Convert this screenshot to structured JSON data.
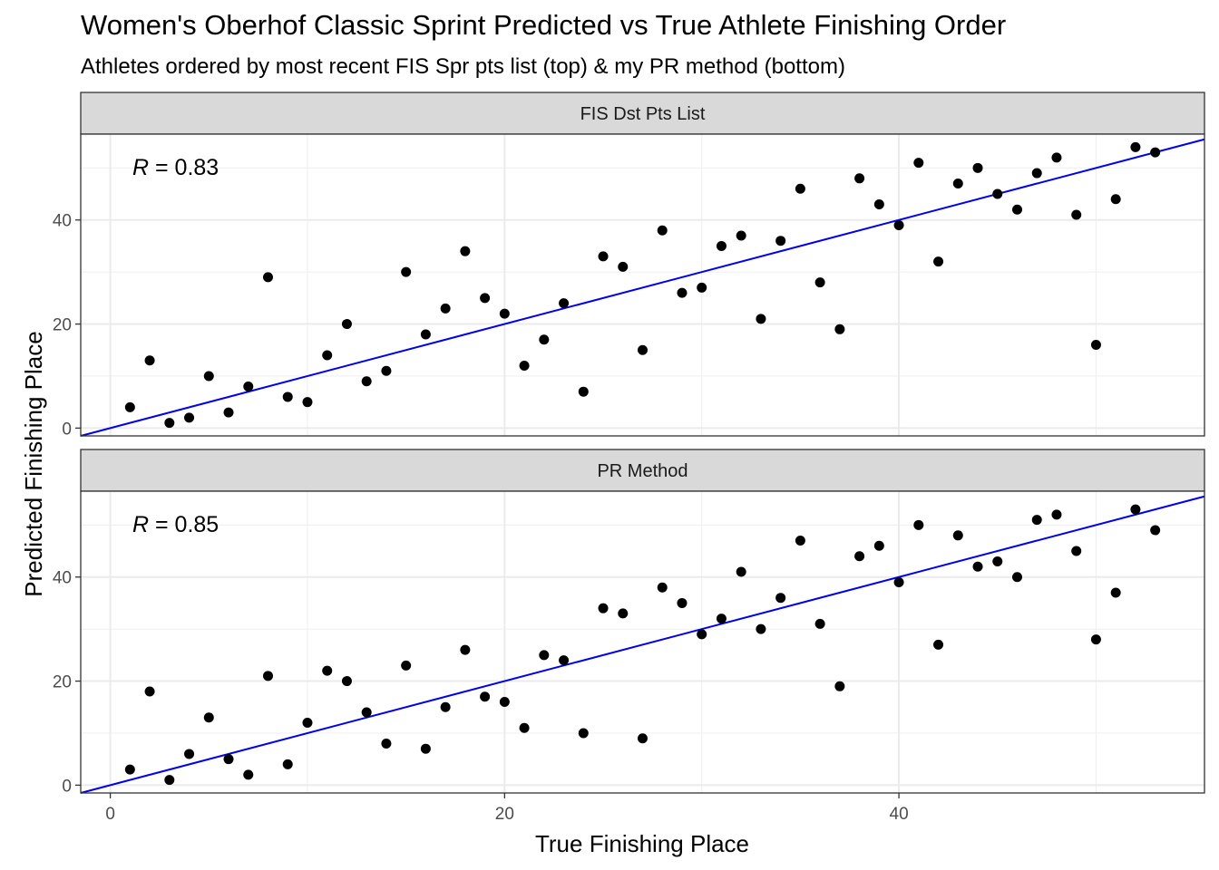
{
  "chart_data": {
    "type": "scatter",
    "title": "Women's Oberhof Classic Sprint Predicted vs True Athlete Finishing Order",
    "subtitle": "Athletes ordered by most recent FIS Spr pts list (top) & my PR method (bottom)",
    "xlabel": "True Finishing Place",
    "ylabel": "Predicted Finishing Place",
    "xlim": [
      -1.5,
      55.5
    ],
    "ylim": [
      -1.5,
      56.5
    ],
    "x_ticks": [
      0,
      20,
      40
    ],
    "y_ticks": [
      0,
      20,
      40
    ],
    "grid": true,
    "reference_line": {
      "slope": 1,
      "intercept": 0,
      "color": "#0000ee"
    },
    "point_color": "#000000",
    "panels": [
      {
        "strip_label": "FIS Dst Pts List",
        "annotation_var": "R",
        "annotation_value": " = 0.83",
        "points": [
          [
            1,
            4
          ],
          [
            2,
            13
          ],
          [
            3,
            1
          ],
          [
            4,
            2
          ],
          [
            5,
            10
          ],
          [
            6,
            3
          ],
          [
            7,
            8
          ],
          [
            8,
            29
          ],
          [
            9,
            6
          ],
          [
            10,
            5
          ],
          [
            11,
            14
          ],
          [
            12,
            20
          ],
          [
            13,
            9
          ],
          [
            14,
            11
          ],
          [
            15,
            30
          ],
          [
            16,
            18
          ],
          [
            17,
            23
          ],
          [
            18,
            34
          ],
          [
            19,
            25
          ],
          [
            20,
            22
          ],
          [
            21,
            12
          ],
          [
            22,
            17
          ],
          [
            23,
            24
          ],
          [
            24,
            7
          ],
          [
            25,
            33
          ],
          [
            26,
            31
          ],
          [
            27,
            15
          ],
          [
            28,
            38
          ],
          [
            29,
            26
          ],
          [
            30,
            27
          ],
          [
            31,
            35
          ],
          [
            32,
            37
          ],
          [
            33,
            21
          ],
          [
            34,
            36
          ],
          [
            35,
            46
          ],
          [
            36,
            28
          ],
          [
            37,
            19
          ],
          [
            38,
            48
          ],
          [
            39,
            43
          ],
          [
            40,
            39
          ],
          [
            41,
            51
          ],
          [
            42,
            32
          ],
          [
            43,
            47
          ],
          [
            44,
            50
          ],
          [
            45,
            45
          ],
          [
            46,
            42
          ],
          [
            47,
            49
          ],
          [
            48,
            52
          ],
          [
            49,
            41
          ],
          [
            50,
            16
          ],
          [
            51,
            44
          ],
          [
            52,
            54
          ],
          [
            53,
            53
          ]
        ]
      },
      {
        "strip_label": "PR Method",
        "annotation_var": "R",
        "annotation_value": " = 0.85",
        "points": [
          [
            1,
            3
          ],
          [
            2,
            18
          ],
          [
            3,
            1
          ],
          [
            4,
            6
          ],
          [
            5,
            13
          ],
          [
            6,
            5
          ],
          [
            7,
            2
          ],
          [
            8,
            21
          ],
          [
            9,
            4
          ],
          [
            10,
            12
          ],
          [
            11,
            22
          ],
          [
            12,
            20
          ],
          [
            13,
            14
          ],
          [
            14,
            8
          ],
          [
            15,
            23
          ],
          [
            16,
            7
          ],
          [
            17,
            15
          ],
          [
            18,
            26
          ],
          [
            19,
            17
          ],
          [
            20,
            16
          ],
          [
            21,
            11
          ],
          [
            22,
            25
          ],
          [
            23,
            24
          ],
          [
            24,
            10
          ],
          [
            25,
            34
          ],
          [
            26,
            33
          ],
          [
            27,
            9
          ],
          [
            28,
            38
          ],
          [
            29,
            35
          ],
          [
            30,
            29
          ],
          [
            31,
            32
          ],
          [
            32,
            41
          ],
          [
            33,
            30
          ],
          [
            34,
            36
          ],
          [
            35,
            47
          ],
          [
            36,
            31
          ],
          [
            37,
            19
          ],
          [
            38,
            44
          ],
          [
            39,
            46
          ],
          [
            40,
            39
          ],
          [
            41,
            50
          ],
          [
            42,
            27
          ],
          [
            43,
            48
          ],
          [
            44,
            42
          ],
          [
            45,
            43
          ],
          [
            46,
            40
          ],
          [
            47,
            51
          ],
          [
            48,
            52
          ],
          [
            49,
            45
          ],
          [
            50,
            28
          ],
          [
            51,
            37
          ],
          [
            52,
            53
          ],
          [
            53,
            49
          ]
        ]
      }
    ]
  }
}
